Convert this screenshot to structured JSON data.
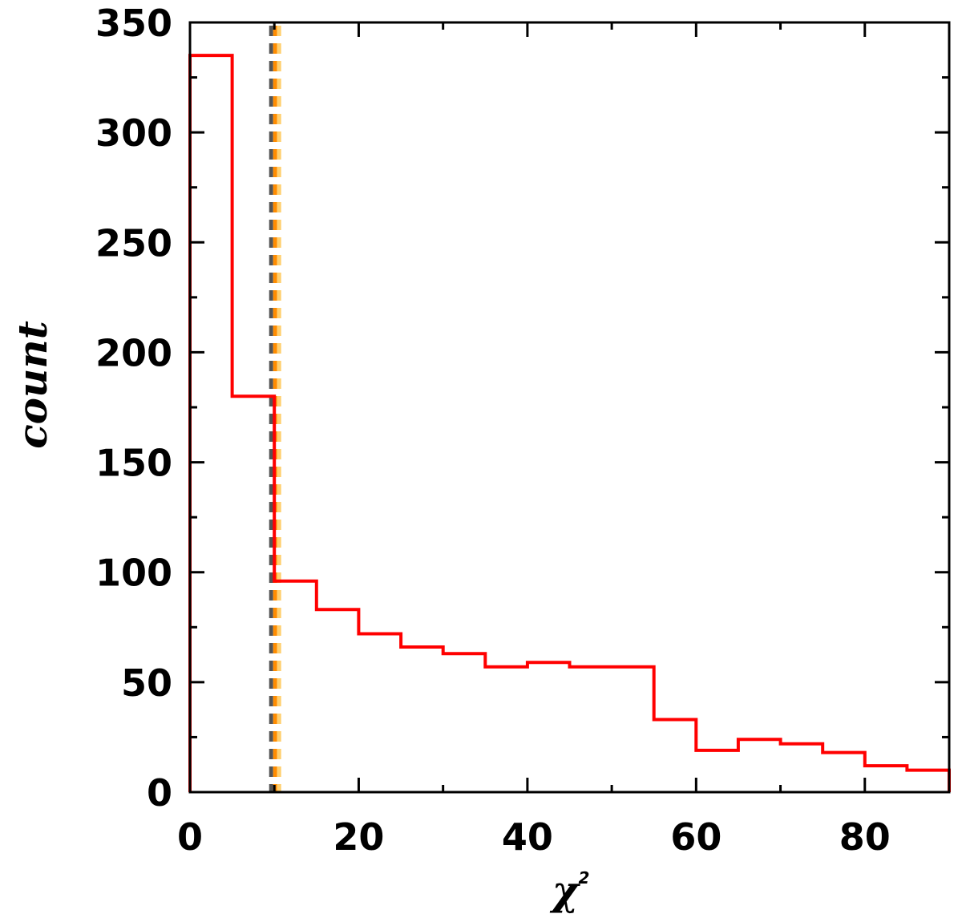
{
  "chart_data": {
    "type": "histogram",
    "xlabel": "χ",
    "xlabel_superscript": "2",
    "ylabel": "count",
    "xlim": [
      0,
      90
    ],
    "ylim": [
      0,
      350
    ],
    "grid": false,
    "x_ticks": [
      0,
      20,
      40,
      60,
      80
    ],
    "x_tick_labels": [
      "0",
      "20",
      "40",
      "60",
      "80"
    ],
    "y_ticks": [
      0,
      50,
      100,
      150,
      200,
      250,
      300,
      350
    ],
    "y_tick_labels": [
      "0",
      "50",
      "100",
      "150",
      "200",
      "250",
      "300",
      "350"
    ],
    "bin_width": 5,
    "bin_edges": [
      0,
      5,
      10,
      15,
      20,
      25,
      30,
      35,
      40,
      45,
      50,
      55,
      60,
      65,
      70,
      75,
      80,
      85,
      90
    ],
    "counts": [
      335,
      180,
      96,
      83,
      72,
      66,
      63,
      57,
      59,
      57,
      57,
      33,
      19,
      24,
      22,
      18,
      12,
      10
    ],
    "histogram_color": "#ff0000",
    "reference_line": {
      "x": 10,
      "style": "dashed",
      "colors": [
        "#555555",
        "#ff8c00",
        "#ffd070"
      ]
    }
  }
}
